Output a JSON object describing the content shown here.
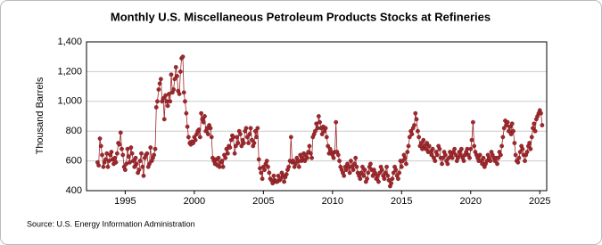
{
  "chart_data": {
    "type": "line",
    "title": "Monthly U.S. Miscellaneous Petroleum Products Stocks at Refineries",
    "y_label": "Thousand Barrels",
    "source": "Source: U.S. Energy Information Administration",
    "color": "#a0282d",
    "grid": true,
    "xlim": [
      1992.2,
      2025.5
    ],
    "xticks": [
      1995,
      2000,
      2005,
      2010,
      2015,
      2020,
      2025
    ],
    "ylim": [
      400,
      1400
    ],
    "yticks": [
      400,
      600,
      800,
      {
        "value": 1000,
        "label": "1,000"
      },
      {
        "value": 1200,
        "label": "1,200"
      },
      {
        "value": 1400,
        "label": "1,400"
      }
    ],
    "x": [
      1993,
      1993.08,
      1993.17,
      1993.25,
      1993.33,
      1993.42,
      1993.5,
      1993.58,
      1993.67,
      1993.75,
      1993.83,
      1993.92,
      1994,
      1994.08,
      1994.17,
      1994.25,
      1994.33,
      1994.42,
      1994.5,
      1994.58,
      1994.67,
      1994.75,
      1994.83,
      1994.92,
      1995,
      1995.08,
      1995.17,
      1995.25,
      1995.33,
      1995.42,
      1995.5,
      1995.58,
      1995.67,
      1995.75,
      1995.83,
      1995.92,
      1996,
      1996.08,
      1996.17,
      1996.25,
      1996.33,
      1996.42,
      1996.5,
      1996.58,
      1996.67,
      1996.75,
      1996.83,
      1996.92,
      1997,
      1997.08,
      1997.17,
      1997.25,
      1997.33,
      1997.42,
      1997.5,
      1997.58,
      1997.67,
      1997.75,
      1997.83,
      1997.92,
      1998,
      1998.08,
      1998.17,
      1998.25,
      1998.33,
      1998.42,
      1998.5,
      1998.58,
      1998.67,
      1998.75,
      1998.83,
      1998.92,
      1999,
      1999.08,
      1999.17,
      1999.25,
      1999.33,
      1999.42,
      1999.5,
      1999.58,
      1999.67,
      1999.75,
      1999.83,
      1999.92,
      2000,
      2000.08,
      2000.17,
      2000.25,
      2000.33,
      2000.42,
      2000.5,
      2000.58,
      2000.67,
      2000.75,
      2000.83,
      2000.92,
      2001,
      2001.08,
      2001.17,
      2001.25,
      2001.33,
      2001.42,
      2001.5,
      2001.58,
      2001.67,
      2001.75,
      2001.83,
      2001.92,
      2002,
      2002.08,
      2002.17,
      2002.25,
      2002.33,
      2002.42,
      2002.5,
      2002.58,
      2002.67,
      2002.75,
      2002.83,
      2002.92,
      2003,
      2003.08,
      2003.17,
      2003.25,
      2003.33,
      2003.42,
      2003.5,
      2003.58,
      2003.67,
      2003.75,
      2003.83,
      2003.92,
      2004,
      2004.08,
      2004.17,
      2004.25,
      2004.33,
      2004.42,
      2004.5,
      2004.58,
      2004.67,
      2004.75,
      2004.83,
      2004.92,
      2005,
      2005.08,
      2005.17,
      2005.25,
      2005.33,
      2005.42,
      2005.5,
      2005.58,
      2005.67,
      2005.75,
      2005.83,
      2005.92,
      2006,
      2006.08,
      2006.17,
      2006.25,
      2006.33,
      2006.42,
      2006.5,
      2006.58,
      2006.67,
      2006.75,
      2006.83,
      2006.92,
      2007,
      2007.08,
      2007.17,
      2007.25,
      2007.33,
      2007.42,
      2007.5,
      2007.58,
      2007.67,
      2007.75,
      2007.83,
      2007.92,
      2008,
      2008.08,
      2008.17,
      2008.25,
      2008.33,
      2008.42,
      2008.5,
      2008.58,
      2008.67,
      2008.75,
      2008.83,
      2008.92,
      2009,
      2009.08,
      2009.17,
      2009.25,
      2009.33,
      2009.42,
      2009.5,
      2009.58,
      2009.67,
      2009.75,
      2009.83,
      2009.92,
      2010,
      2010.08,
      2010.17,
      2010.25,
      2010.33,
      2010.42,
      2010.5,
      2010.58,
      2010.67,
      2010.75,
      2010.83,
      2010.92,
      2011,
      2011.08,
      2011.17,
      2011.25,
      2011.33,
      2011.42,
      2011.5,
      2011.58,
      2011.67,
      2011.75,
      2011.83,
      2011.92,
      2012,
      2012.08,
      2012.17,
      2012.25,
      2012.33,
      2012.42,
      2012.5,
      2012.58,
      2012.67,
      2012.75,
      2012.83,
      2012.92,
      2013,
      2013.08,
      2013.17,
      2013.25,
      2013.33,
      2013.42,
      2013.5,
      2013.58,
      2013.67,
      2013.75,
      2013.83,
      2013.92,
      2014,
      2014.08,
      2014.17,
      2014.25,
      2014.33,
      2014.42,
      2014.5,
      2014.58,
      2014.67,
      2014.75,
      2014.83,
      2014.92,
      2015,
      2015.08,
      2015.17,
      2015.25,
      2015.33,
      2015.42,
      2015.5,
      2015.58,
      2015.67,
      2015.75,
      2015.83,
      2015.92,
      2016,
      2016.08,
      2016.17,
      2016.25,
      2016.33,
      2016.42,
      2016.5,
      2016.58,
      2016.67,
      2016.75,
      2016.83,
      2016.92,
      2017,
      2017.08,
      2017.17,
      2017.25,
      2017.33,
      2017.42,
      2017.5,
      2017.58,
      2017.67,
      2017.75,
      2017.83,
      2017.92,
      2018,
      2018.08,
      2018.17,
      2018.25,
      2018.33,
      2018.42,
      2018.5,
      2018.58,
      2018.67,
      2018.75,
      2018.83,
      2018.92,
      2019,
      2019.08,
      2019.17,
      2019.25,
      2019.33,
      2019.42,
      2019.5,
      2019.58,
      2019.67,
      2019.75,
      2019.83,
      2019.92,
      2020,
      2020.08,
      2020.17,
      2020.25,
      2020.33,
      2020.42,
      2020.5,
      2020.58,
      2020.67,
      2020.75,
      2020.83,
      2020.92,
      2021,
      2021.08,
      2021.17,
      2021.25,
      2021.33,
      2021.42,
      2021.5,
      2021.58,
      2021.67,
      2021.75,
      2021.83,
      2021.92,
      2022,
      2022.08,
      2022.17,
      2022.25,
      2022.33,
      2022.42,
      2022.5,
      2022.58,
      2022.67,
      2022.75,
      2022.83,
      2022.92,
      2023,
      2023.08,
      2023.17,
      2023.25,
      2023.33,
      2023.42,
      2023.5,
      2023.58,
      2023.67,
      2023.75,
      2023.83,
      2023.92,
      2024,
      2024.08,
      2024.17,
      2024.25,
      2024.33,
      2024.42,
      2024.5,
      2024.58,
      2024.67,
      2024.75,
      2024.83,
      2024.92,
      2025,
      2025.08,
      2025.17
    ],
    "values": [
      590,
      570,
      750,
      700,
      640,
      560,
      590,
      610,
      650,
      560,
      600,
      640,
      660,
      610,
      580,
      620,
      590,
      650,
      720,
      710,
      790,
      680,
      640,
      560,
      540,
      580,
      680,
      630,
      590,
      690,
      650,
      600,
      560,
      620,
      580,
      520,
      540,
      600,
      650,
      560,
      500,
      620,
      640,
      650,
      560,
      580,
      690,
      600,
      620,
      640,
      680,
      960,
      1000,
      1080,
      1120,
      1150,
      1000,
      1020,
      880,
      1040,
      1000,
      970,
      1050,
      1000,
      1180,
      1060,
      1080,
      1150,
      1230,
      1170,
      1070,
      1050,
      1200,
      1290,
      1300,
      1060,
      1000,
      920,
      830,
      760,
      720,
      710,
      730,
      720,
      760,
      740,
      780,
      800,
      810,
      760,
      920,
      880,
      860,
      900,
      800,
      820,
      780,
      840,
      820,
      760,
      620,
      600,
      580,
      610,
      570,
      620,
      560,
      590,
      600,
      560,
      640,
      620,
      680,
      650,
      700,
      690,
      740,
      770,
      760,
      650,
      700,
      760,
      720,
      800,
      780,
      700,
      740,
      720,
      800,
      820,
      760,
      720,
      780,
      820,
      740,
      700,
      720,
      800,
      760,
      820,
      610,
      550,
      520,
      480,
      560,
      540,
      580,
      600,
      560,
      520,
      480,
      470,
      450,
      500,
      470,
      460,
      460,
      500,
      470,
      480,
      520,
      500,
      460,
      490,
      510,
      540,
      560,
      600,
      760,
      590,
      600,
      560,
      580,
      620,
      600,
      560,
      640,
      600,
      620,
      650,
      600,
      640,
      620,
      660,
      700,
      650,
      620,
      760,
      780,
      800,
      850,
      820,
      900,
      860,
      820,
      780,
      830,
      800,
      820,
      760,
      700,
      650,
      680,
      660,
      640,
      620,
      660,
      860,
      660,
      640,
      600,
      560,
      540,
      520,
      500,
      560,
      540,
      580,
      560,
      520,
      600,
      560,
      540,
      580,
      620,
      560,
      520,
      500,
      480,
      520,
      560,
      500,
      540,
      460,
      480,
      520,
      560,
      580,
      540,
      500,
      540,
      520,
      480,
      500,
      460,
      520,
      560,
      540,
      500,
      480,
      520,
      560,
      500,
      470,
      430,
      450,
      480,
      520,
      560,
      540,
      500,
      480,
      520,
      600,
      560,
      600,
      640,
      620,
      580,
      660,
      700,
      760,
      800,
      780,
      820,
      840,
      920,
      880,
      800,
      760,
      700,
      720,
      680,
      740,
      700,
      680,
      720,
      660,
      700,
      660,
      640,
      680,
      620,
      600,
      660,
      640,
      700,
      680,
      620,
      580,
      620,
      660,
      640,
      600,
      580,
      620,
      660,
      640,
      620,
      660,
      680,
      640,
      600,
      620,
      660,
      640,
      680,
      620,
      600,
      640,
      660,
      680,
      640,
      620,
      680,
      740,
      860,
      700,
      660,
      640,
      620,
      600,
      640,
      600,
      580,
      620,
      560,
      580,
      600,
      640,
      620,
      600,
      660,
      640,
      620,
      600,
      620,
      580,
      620,
      660,
      640,
      700,
      760,
      820,
      870,
      840,
      860,
      800,
      830,
      780,
      850,
      800,
      720,
      640,
      600,
      590,
      620,
      660,
      700,
      680,
      640,
      600,
      640,
      660,
      700,
      720,
      680,
      760,
      820,
      850,
      800,
      880,
      900,
      920,
      940,
      920,
      840
    ]
  }
}
